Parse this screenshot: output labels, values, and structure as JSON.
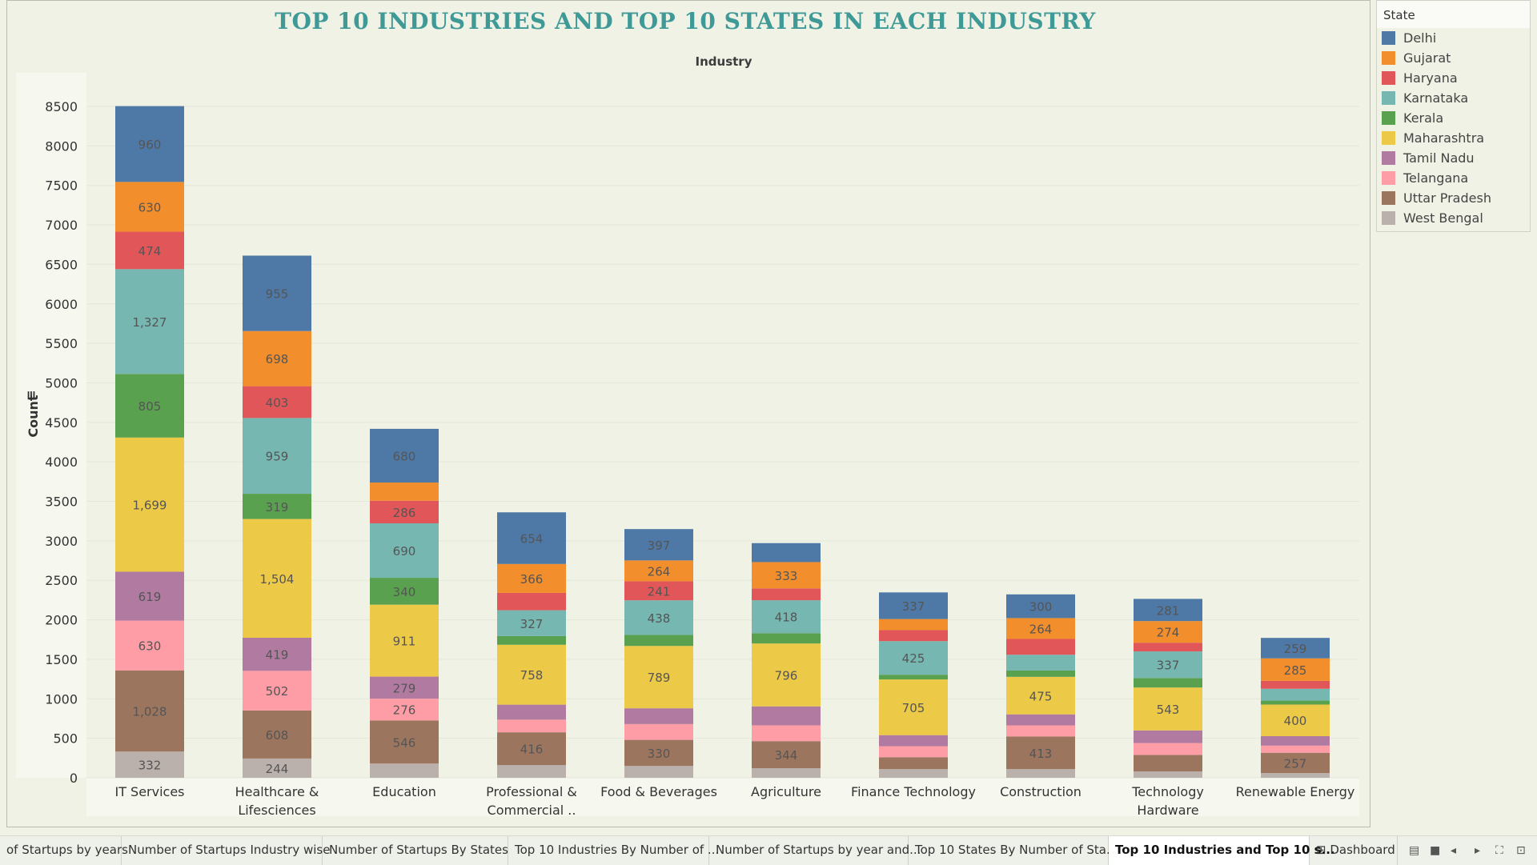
{
  "chart_data": {
    "type": "bar",
    "stacked": true,
    "title": "TOP 10 INDUSTRIES AND TOP 10 STATES IN EACH INDUSTRY",
    "x_header": "Industry",
    "ylabel": "Count",
    "ylim": [
      0,
      8500
    ],
    "y_ticks": [
      0,
      500,
      1000,
      1500,
      2000,
      2500,
      3000,
      3500,
      4000,
      4500,
      5000,
      5500,
      6000,
      6500,
      7000,
      7500,
      8000,
      8500
    ],
    "categories": [
      "IT Services",
      "Healthcare & Lifesciences",
      "Education",
      "Professional & Commercial ..",
      "Food & Beverages",
      "Agriculture",
      "Finance Technology",
      "Construction",
      "Technology Hardware",
      "Renewable Energy"
    ],
    "category_lines": [
      [
        "IT Services"
      ],
      [
        "Healthcare &",
        "Lifesciences"
      ],
      [
        "Education"
      ],
      [
        "Professional &",
        "Commercial .."
      ],
      [
        "Food & Beverages"
      ],
      [
        "Agriculture"
      ],
      [
        "Finance Technology"
      ],
      [
        "Construction"
      ],
      [
        "Technology",
        "Hardware"
      ],
      [
        "Renewable Energy"
      ]
    ],
    "series": [
      {
        "name": "West Bengal",
        "color": "#bab0ac",
        "values": [
          332,
          244,
          180,
          160,
          150,
          120,
          110,
          110,
          80,
          60
        ]
      },
      {
        "name": "Uttar Pradesh",
        "color": "#9c755f",
        "values": [
          1028,
          608,
          546,
          416,
          330,
          344,
          150,
          413,
          210,
          257
        ]
      },
      {
        "name": "Telangana",
        "color": "#ff9da7",
        "values": [
          630,
          502,
          276,
          160,
          200,
          200,
          140,
          140,
          150,
          90
        ]
      },
      {
        "name": "Tamil Nadu",
        "color": "#b07aa1",
        "values": [
          619,
          419,
          279,
          190,
          200,
          240,
          140,
          140,
          160,
          120
        ]
      },
      {
        "name": "Maharashtra",
        "color": "#edc948",
        "values": [
          1699,
          1504,
          911,
          758,
          789,
          796,
          705,
          475,
          543,
          400
        ]
      },
      {
        "name": "Kerala",
        "color": "#59a14f",
        "values": [
          805,
          319,
          340,
          110,
          140,
          130,
          60,
          80,
          120,
          50
        ]
      },
      {
        "name": "Karnataka",
        "color": "#76b7b2",
        "values": [
          1327,
          959,
          690,
          327,
          438,
          418,
          425,
          200,
          337,
          150
        ]
      },
      {
        "name": "Haryana",
        "color": "#e15759",
        "values": [
          474,
          403,
          286,
          220,
          241,
          150,
          140,
          200,
          110,
          100
        ]
      },
      {
        "name": "Gujarat",
        "color": "#f28e2b",
        "values": [
          630,
          698,
          230,
          366,
          264,
          333,
          140,
          264,
          274,
          285
        ]
      },
      {
        "name": "Delhi",
        "color": "#4e79a7",
        "values": [
          960,
          955,
          680,
          654,
          397,
          240,
          337,
          300,
          281,
          259
        ]
      }
    ],
    "labels_shown": {
      "West Bengal": [
        332,
        244
      ],
      "Uttar Pradesh": [
        1028,
        608,
        546,
        416,
        330,
        344,
        null,
        413,
        null,
        257
      ],
      "Telangana": [
        630,
        502,
        276
      ],
      "Tamil Nadu": [
        619,
        419,
        279
      ],
      "Maharashtra": [
        1699,
        1504,
        911,
        758,
        789,
        796,
        705,
        475,
        543,
        400
      ],
      "Kerala": [
        805,
        319,
        340
      ],
      "Karnataka": [
        1327,
        959,
        690,
        327,
        438,
        418,
        425,
        null,
        337
      ],
      "Haryana": [
        474,
        403,
        286,
        null,
        241
      ],
      "Gujarat": [
        630,
        698,
        null,
        366,
        264,
        333,
        null,
        264,
        274,
        285
      ],
      "Delhi": [
        960,
        955,
        680,
        654,
        397,
        null,
        337,
        300,
        281,
        259
      ]
    }
  },
  "legend": {
    "title": "State",
    "items": [
      {
        "label": "Delhi",
        "color": "#4e79a7"
      },
      {
        "label": "Gujarat",
        "color": "#f28e2b"
      },
      {
        "label": "Haryana",
        "color": "#e15759"
      },
      {
        "label": "Karnataka",
        "color": "#76b7b2"
      },
      {
        "label": "Kerala",
        "color": "#59a14f"
      },
      {
        "label": "Maharashtra",
        "color": "#edc948"
      },
      {
        "label": "Tamil Nadu",
        "color": "#b07aa1"
      },
      {
        "label": "Telangana",
        "color": "#ff9da7"
      },
      {
        "label": "Uttar Pradesh",
        "color": "#9c755f"
      },
      {
        "label": "West Bengal",
        "color": "#bab0ac"
      }
    ]
  },
  "tabs": [
    {
      "label": "of Startups by years",
      "active": false
    },
    {
      "label": "Number of Startups Industry wise",
      "active": false
    },
    {
      "label": "Number of Startups By States",
      "active": false
    },
    {
      "label": "Top 10 Industries By Number of ...",
      "active": false
    },
    {
      "label": "Number of Startups by year and...",
      "active": false
    },
    {
      "label": "Top 10 States By Number of Sta...",
      "active": false
    },
    {
      "label": "Top 10 Industries and Top 10 s...",
      "active": true
    },
    {
      "label": "Dashboard",
      "active": false
    }
  ]
}
